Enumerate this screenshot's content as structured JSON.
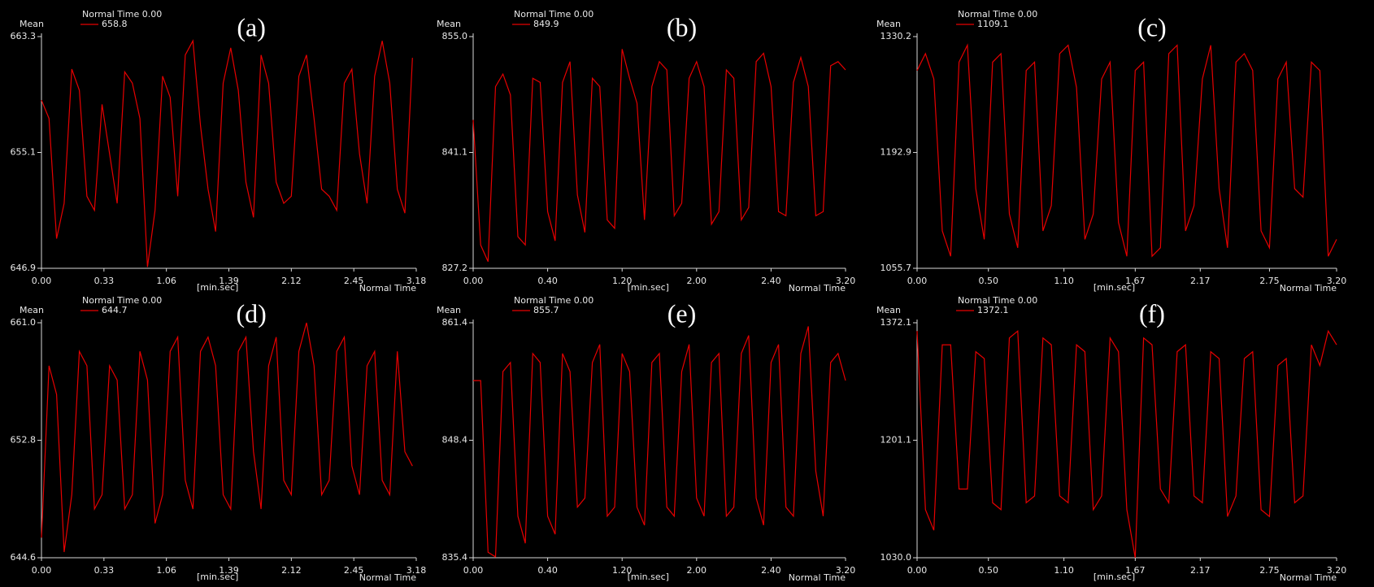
{
  "chart_data": [
    {
      "type": "line",
      "title": "(a)",
      "header": "Normal Time 0.00",
      "ylabel": "Mean",
      "xlabel": "Normal Time",
      "xunit": "[min.sec]",
      "xlim": [
        0,
        198
      ],
      "xticks": [
        {
          "value": 0,
          "label": "0.00"
        },
        {
          "value": 33,
          "label": "0.33"
        },
        {
          "value": 66,
          "label": "1.06"
        },
        {
          "value": 99,
          "label": "1.39"
        },
        {
          "value": 132,
          "label": "2.12"
        },
        {
          "value": 165,
          "label": "2.45"
        },
        {
          "value": 198,
          "label": "3.18"
        }
      ],
      "ylim": [
        646.9,
        663.3
      ],
      "yticks": [
        646.9,
        655.1,
        663.3
      ],
      "x": [
        0,
        4,
        8,
        12,
        16,
        20,
        24,
        28,
        32,
        36,
        40,
        44,
        48,
        52,
        56,
        60,
        64,
        68,
        72,
        76,
        80,
        84,
        88,
        92,
        96,
        100,
        104,
        108,
        112,
        116,
        120,
        124,
        128,
        132,
        136,
        140,
        144,
        148,
        152,
        156,
        160,
        164,
        168,
        172,
        176,
        180,
        184,
        188,
        192,
        196
      ],
      "series": [
        {
          "name": "658.8",
          "color": "#e60000",
          "values": [
            658.8,
            657.5,
            649.0,
            651.5,
            661.0,
            659.5,
            652.0,
            651.0,
            658.5,
            655.0,
            651.5,
            660.8,
            660.0,
            657.5,
            647.0,
            651.0,
            660.5,
            659.0,
            652.0,
            662.0,
            663.0,
            657.0,
            652.5,
            649.5,
            660.0,
            662.5,
            659.5,
            653.0,
            650.5,
            662.0,
            660.0,
            653.0,
            651.5,
            652.0,
            660.5,
            662.0,
            657.5,
            652.5,
            652.0,
            651.0,
            660.0,
            661.0,
            655.0,
            651.5,
            660.5,
            663.0,
            660.0,
            652.5,
            650.8,
            661.8
          ]
        }
      ]
    },
    {
      "type": "line",
      "title": "(b)",
      "header": "Normal Time 0.00",
      "ylabel": "Mean",
      "xlabel": "Normal Time",
      "xunit": "[min.sec]",
      "xlim": [
        0,
        200
      ],
      "xticks": [
        {
          "value": 0,
          "label": "0.00"
        },
        {
          "value": 40,
          "label": "0.40"
        },
        {
          "value": 80,
          "label": "1.20"
        },
        {
          "value": 120,
          "label": "2.00"
        },
        {
          "value": 160,
          "label": "2.40"
        },
        {
          "value": 200,
          "label": "3.20"
        }
      ],
      "ylim": [
        827.2,
        855.0
      ],
      "yticks": [
        827.2,
        841.1,
        {
          "value": 855,
          "label": "855.0"
        }
      ],
      "x": [
        0,
        4,
        8,
        12,
        16,
        20,
        24,
        28,
        32,
        36,
        40,
        44,
        48,
        52,
        56,
        60,
        64,
        68,
        72,
        76,
        80,
        84,
        88,
        92,
        96,
        100,
        104,
        108,
        112,
        116,
        120,
        124,
        128,
        132,
        136,
        140,
        144,
        148,
        152,
        156,
        160,
        164,
        168,
        172,
        176,
        180,
        184,
        188,
        192,
        196,
        200
      ],
      "series": [
        {
          "name": "849.9",
          "color": "#e60000",
          "values": [
            845,
            830,
            828,
            849,
            850.5,
            848,
            831,
            830,
            850,
            849.5,
            834,
            830.5,
            849.5,
            852,
            836,
            831.5,
            850,
            849,
            833,
            832,
            853.5,
            850,
            847,
            833,
            849,
            852,
            851,
            833.5,
            835,
            850,
            852,
            849,
            832.5,
            834,
            851,
            850,
            833,
            834.5,
            852,
            853,
            849,
            834,
            833.5,
            849.5,
            852.5,
            849,
            833.5,
            834,
            851.5,
            852,
            851
          ]
        }
      ]
    },
    {
      "type": "line",
      "title": "(c)",
      "header": "Normal Time 0.00",
      "ylabel": "Mean",
      "xlabel": "Normal Time",
      "xunit": "[min.sec]",
      "xlim": [
        0,
        200
      ],
      "xticks": [
        {
          "value": 0,
          "label": "0.00"
        },
        {
          "value": 34,
          "label": "0.50"
        },
        {
          "value": 70,
          "label": "1.10"
        },
        {
          "value": 104,
          "label": "1.67"
        },
        {
          "value": 135,
          "label": "2.17"
        },
        {
          "value": 168,
          "label": "2.75"
        },
        {
          "value": 200,
          "label": "3.20"
        }
      ],
      "ylim": [
        1055.7,
        1330.2
      ],
      "yticks": [
        1055.7,
        1192.9,
        1330.2
      ],
      "x": [
        0,
        4,
        8,
        12,
        16,
        20,
        24,
        28,
        32,
        36,
        40,
        44,
        48,
        52,
        56,
        60,
        64,
        68,
        72,
        76,
        80,
        84,
        88,
        92,
        96,
        100,
        104,
        108,
        112,
        116,
        120,
        124,
        128,
        132,
        136,
        140,
        144,
        148,
        152,
        156,
        160,
        164,
        168,
        172,
        176,
        180,
        184,
        188,
        192,
        196,
        200
      ],
      "series": [
        {
          "name": "1109.1",
          "color": "#e60000",
          "values": [
            1290,
            1310,
            1280,
            1100,
            1070,
            1300,
            1320,
            1150,
            1090,
            1300,
            1310,
            1120,
            1080,
            1290,
            1300,
            1100,
            1130,
            1310,
            1320,
            1270,
            1090,
            1120,
            1280,
            1300,
            1110,
            1070,
            1290,
            1300,
            1070,
            1080,
            1310,
            1320,
            1100,
            1130,
            1280,
            1320,
            1150,
            1080,
            1300,
            1310,
            1290,
            1100,
            1080,
            1280,
            1300,
            1150,
            1140,
            1300,
            1290,
            1070,
            1090
          ]
        }
      ]
    },
    {
      "type": "line",
      "title": "(d)",
      "header": "Normal Time 0.00",
      "ylabel": "Mean",
      "xlabel": "Normal Time",
      "xunit": "[min.sec]",
      "xlim": [
        0,
        198
      ],
      "xticks": [
        {
          "value": 0,
          "label": "0.00"
        },
        {
          "value": 33,
          "label": "0.33"
        },
        {
          "value": 66,
          "label": "1.06"
        },
        {
          "value": 99,
          "label": "1.39"
        },
        {
          "value": 132,
          "label": "2.12"
        },
        {
          "value": 165,
          "label": "2.45"
        },
        {
          "value": 198,
          "label": "3.18"
        }
      ],
      "ylim": [
        644.6,
        661.0
      ],
      "yticks": [
        644.6,
        652.8,
        {
          "value": 661,
          "label": "661.0"
        }
      ],
      "x": [
        0,
        4,
        8,
        12,
        16,
        20,
        24,
        28,
        32,
        36,
        40,
        44,
        48,
        52,
        56,
        60,
        64,
        68,
        72,
        76,
        80,
        84,
        88,
        92,
        96,
        100,
        104,
        108,
        112,
        116,
        120,
        124,
        128,
        132,
        136,
        140,
        144,
        148,
        152,
        156,
        160,
        164,
        168,
        172,
        176,
        180,
        184,
        188,
        192,
        196
      ],
      "series": [
        {
          "name": "644.7",
          "color": "#e60000",
          "values": [
            646,
            658,
            656,
            645,
            649,
            659,
            658,
            648,
            649,
            658,
            657,
            648,
            649,
            659,
            657,
            647,
            649,
            659,
            660,
            650,
            648,
            659,
            660,
            658,
            649,
            648,
            659,
            660,
            652,
            648,
            658,
            660,
            650,
            649,
            659,
            661,
            658,
            649,
            650,
            659,
            660,
            651,
            649,
            658,
            659,
            650,
            649,
            659,
            652,
            651
          ]
        }
      ]
    },
    {
      "type": "line",
      "title": "(e)",
      "header": "Normal Time 0.00",
      "ylabel": "Mean",
      "xlabel": "Normal Time",
      "xunit": "[min.sec]",
      "xlim": [
        0,
        200
      ],
      "xticks": [
        {
          "value": 0,
          "label": "0.00"
        },
        {
          "value": 40,
          "label": "0.40"
        },
        {
          "value": 80,
          "label": "1.20"
        },
        {
          "value": 120,
          "label": "2.00"
        },
        {
          "value": 160,
          "label": "2.40"
        },
        {
          "value": 200,
          "label": "3.20"
        }
      ],
      "ylim": [
        835.4,
        861.4
      ],
      "yticks": [
        835.4,
        848.4,
        861.4
      ],
      "x": [
        0,
        4,
        8,
        12,
        16,
        20,
        24,
        28,
        32,
        36,
        40,
        44,
        48,
        52,
        56,
        60,
        64,
        68,
        72,
        76,
        80,
        84,
        88,
        92,
        96,
        100,
        104,
        108,
        112,
        116,
        120,
        124,
        128,
        132,
        136,
        140,
        144,
        148,
        152,
        156,
        160,
        164,
        168,
        172,
        176,
        180,
        184,
        188,
        192,
        196,
        200
      ],
      "series": [
        {
          "name": "855.7",
          "color": "#e60000",
          "values": [
            855,
            855,
            836,
            835.5,
            856,
            857,
            840,
            837,
            858,
            857,
            840,
            838,
            858,
            856,
            841,
            842,
            857,
            859,
            840,
            841,
            858,
            856,
            841,
            839,
            857,
            858,
            841,
            840,
            856,
            859,
            842,
            840,
            857,
            858,
            840,
            841,
            858,
            860,
            842,
            839,
            857,
            859,
            841,
            840,
            858,
            861,
            845,
            840,
            857,
            858,
            855
          ]
        }
      ]
    },
    {
      "type": "line",
      "title": "(f)",
      "header": "Normal Time 0.00",
      "ylabel": "Mean",
      "xlabel": "Normal Time",
      "xunit": "[min.sec]",
      "xlim": [
        0,
        200
      ],
      "xticks": [
        {
          "value": 0,
          "label": "0.00"
        },
        {
          "value": 34,
          "label": "0.50"
        },
        {
          "value": 70,
          "label": "1.10"
        },
        {
          "value": 104,
          "label": "1.67"
        },
        {
          "value": 135,
          "label": "2.17"
        },
        {
          "value": 168,
          "label": "2.75"
        },
        {
          "value": 200,
          "label": "3.20"
        }
      ],
      "ylim": [
        1030,
        1372.1
      ],
      "yticks": [
        {
          "value": 1030,
          "label": "1030.0"
        },
        1201.1,
        1372.1
      ],
      "x": [
        0,
        4,
        8,
        12,
        16,
        20,
        24,
        28,
        32,
        36,
        40,
        44,
        48,
        52,
        56,
        60,
        64,
        68,
        72,
        76,
        80,
        84,
        88,
        92,
        96,
        100,
        104,
        108,
        112,
        116,
        120,
        124,
        128,
        132,
        136,
        140,
        144,
        148,
        152,
        156,
        160,
        164,
        168,
        172,
        176,
        180,
        184,
        188,
        192,
        196,
        200
      ],
      "series": [
        {
          "name": "1372.1",
          "color": "#e60000",
          "values": [
            1360,
            1100,
            1070,
            1340,
            1340,
            1130,
            1130,
            1330,
            1320,
            1110,
            1100,
            1350,
            1360,
            1110,
            1120,
            1350,
            1340,
            1120,
            1110,
            1340,
            1330,
            1100,
            1120,
            1350,
            1330,
            1100,
            1030,
            1350,
            1340,
            1130,
            1110,
            1330,
            1340,
            1120,
            1110,
            1330,
            1320,
            1090,
            1120,
            1320,
            1330,
            1100,
            1090,
            1310,
            1320,
            1110,
            1120,
            1340,
            1310,
            1360,
            1340
          ]
        }
      ]
    }
  ]
}
